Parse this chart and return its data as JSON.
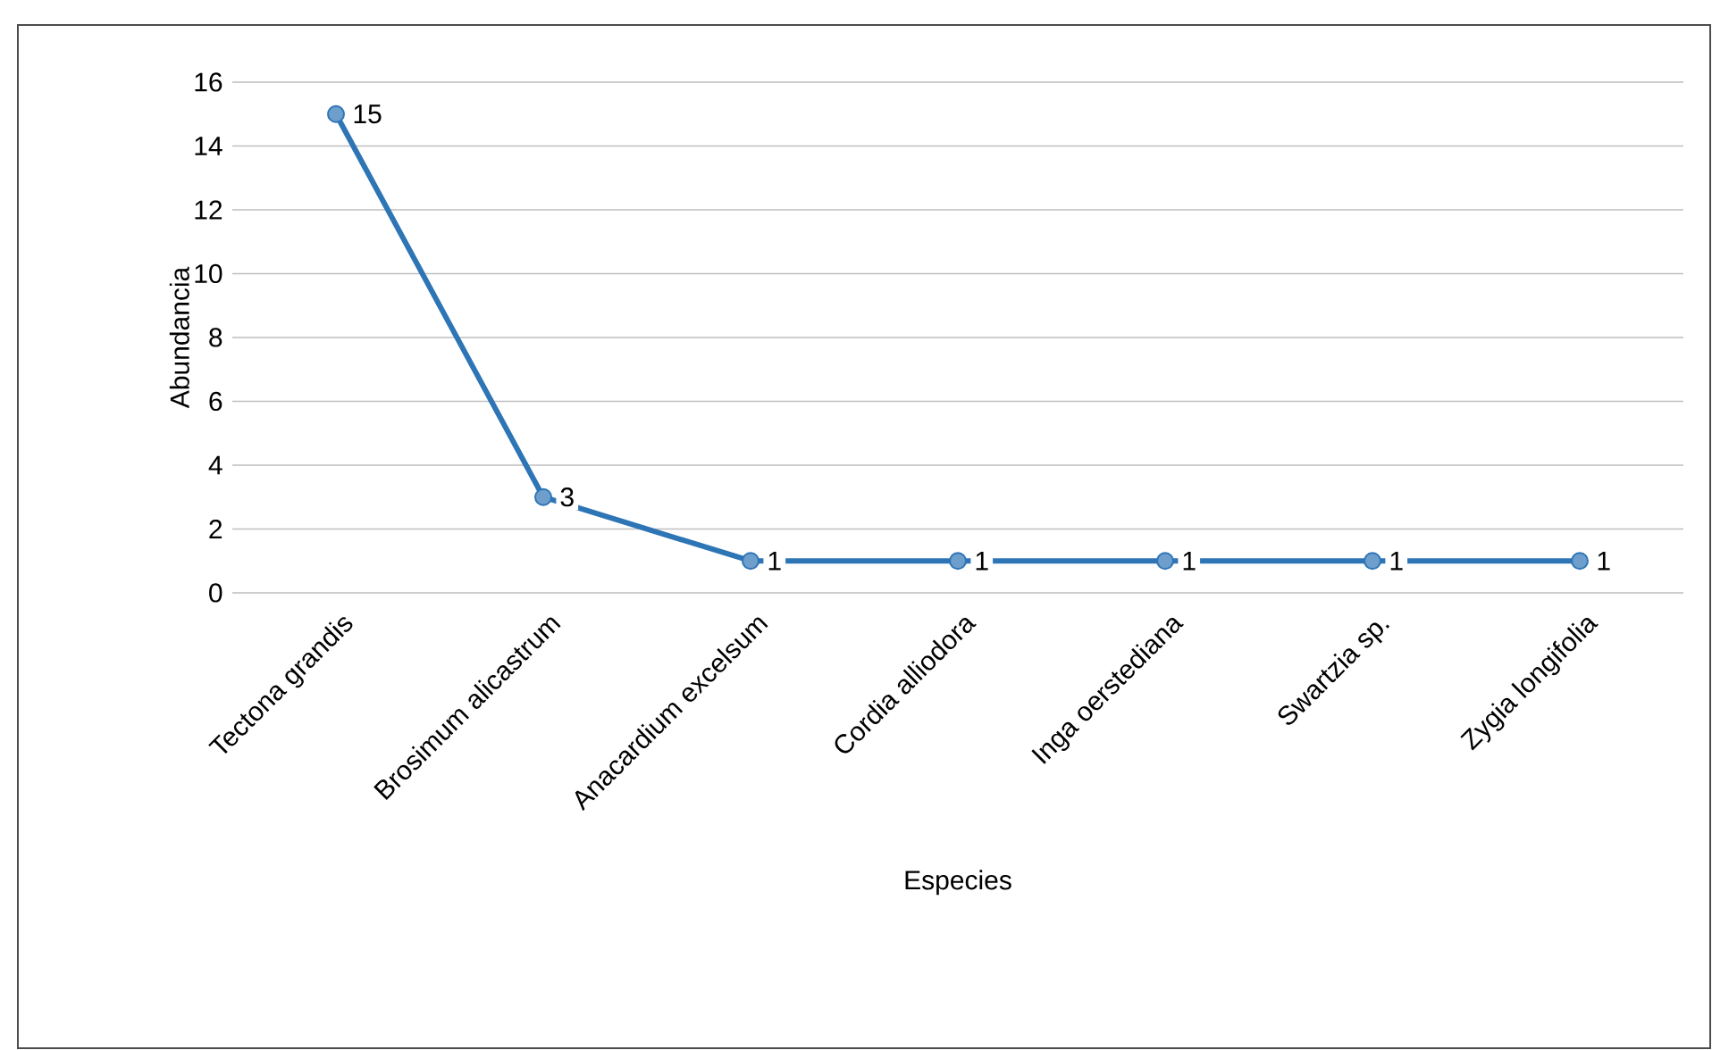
{
  "chart_data": {
    "type": "line",
    "xlabel": "Especies",
    "ylabel": "Abundancia",
    "categories": [
      "Tectona grandis",
      "Brosimum alicastrum",
      "Anacardium excelsum",
      "Cordia alliodora",
      "Inga oerstediana",
      "Swartzia sp.",
      "Zygia longifolia"
    ],
    "values": [
      15,
      3,
      1,
      1,
      1,
      1,
      1
    ],
    "color": "#2e75b6",
    "ylim": [
      0,
      16
    ],
    "yticks": [
      0,
      2,
      4,
      6,
      8,
      10,
      12,
      14,
      16
    ],
    "grid": "y",
    "marker": "circle",
    "line_style": "solid",
    "data_labels": true
  }
}
